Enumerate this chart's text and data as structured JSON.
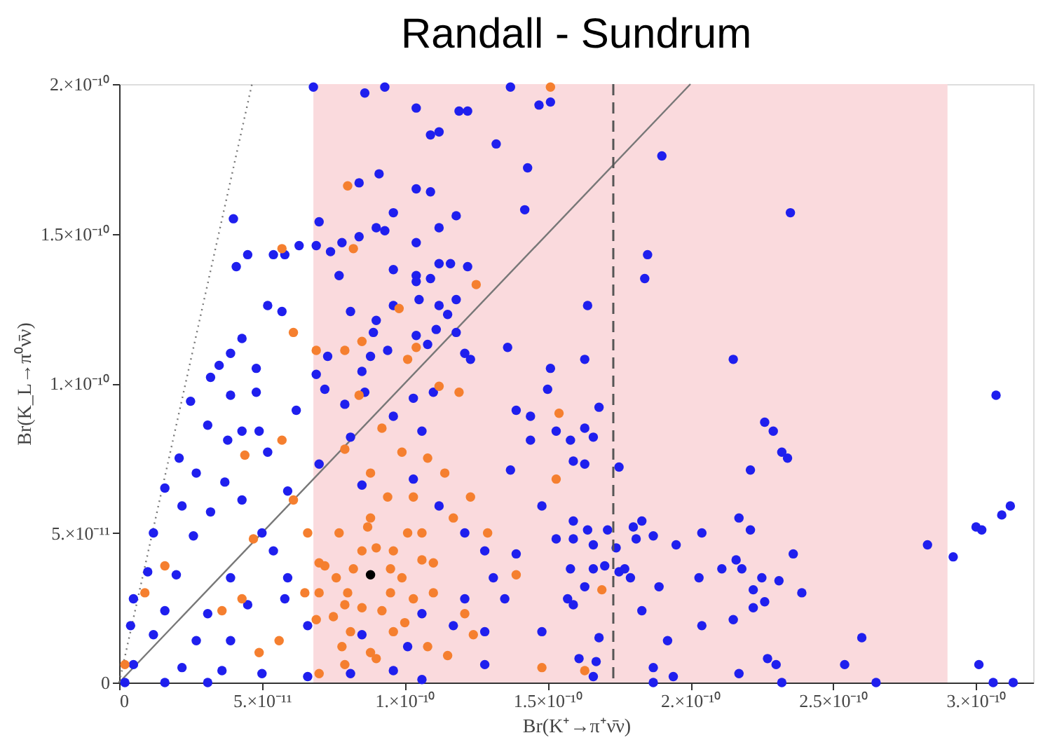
{
  "chart_data": {
    "type": "scatter",
    "title": "Randall - Sundrum",
    "xlabel": "Br(K⁺→π⁺ν̄ν)",
    "ylabel": "Br(K_L→π⁰ν̄ν)",
    "xlim": [
      0,
      3.2e-10
    ],
    "ylim": [
      0,
      2e-10
    ],
    "xticks": [
      0,
      {
        "value": 5e-11,
        "label": "5.×10⁻¹¹"
      },
      {
        "value": 1e-10,
        "label": "1.×10⁻¹⁰"
      },
      {
        "value": 1.5e-10,
        "label": "1.5×10⁻¹⁰"
      },
      {
        "value": 2e-10,
        "label": "2.×10⁻¹⁰"
      },
      {
        "value": 2.5e-10,
        "label": "2.5×10⁻¹⁰"
      },
      {
        "value": 3e-10,
        "label": "3.×10⁻¹⁰"
      }
    ],
    "yticks": [
      0,
      {
        "value": 5e-11,
        "label": "5.×10⁻¹¹"
      },
      {
        "value": 1e-10,
        "label": "1.×10⁻¹⁰"
      },
      {
        "value": 1.5e-10,
        "label": "1.5×10⁻¹⁰"
      },
      {
        "value": 2e-10,
        "label": "2.×10⁻¹⁰"
      }
    ],
    "grid": false,
    "bands": [
      {
        "axis": "x",
        "from": 6.8e-11,
        "to": 2.9e-10,
        "color": "#fadadd"
      }
    ],
    "ref_lines": [
      {
        "axis": "x",
        "value": 1.73e-10,
        "line_style": "dashed",
        "color": "#555555"
      }
    ],
    "series": [
      {
        "type": "line",
        "color": "#777777",
        "line_style": "solid",
        "marker": "none",
        "x": [
          0,
          2e-10
        ],
        "values": [
          0,
          2e-10
        ]
      },
      {
        "type": "line",
        "color": "#777777",
        "line_style": "dotted",
        "marker": "none",
        "x": [
          0,
          4.65e-11
        ],
        "values": [
          0,
          2e-10
        ]
      },
      {
        "color": "#1f1fee",
        "marker": "circle",
        "x": [
          6.8e-11,
          8.6e-11,
          9.3e-11,
          1.04e-10,
          1.19e-10,
          1.22e-10,
          1.09e-10,
          1.12e-10,
          1.37e-10,
          1.47e-10,
          1.51e-10,
          1.32e-10,
          1.43e-10,
          9.1e-11,
          8.4e-11,
          1.04e-10,
          1.09e-10,
          1.42e-10,
          4e-11,
          7e-11,
          9.6e-11,
          1.18e-10,
          9e-11,
          9.3e-11,
          1.12e-10,
          1.04e-10,
          8.4e-11,
          7.8e-11,
          6.3e-11,
          6.9e-11,
          7.4e-11,
          4.5e-11,
          5.4e-11,
          5.8e-11,
          4.1e-11,
          7.7e-11,
          9.6e-11,
          1.04e-10,
          1.04e-10,
          1.09e-10,
          1.12e-10,
          1.16e-10,
          1.22e-10,
          1.05e-10,
          9.6e-11,
          1.12e-10,
          1.18e-10,
          5.2e-11,
          5.7e-11,
          8.1e-11,
          9e-11,
          1.15e-10,
          8.9e-11,
          1.11e-10,
          1.18e-10,
          1.04e-10,
          4.3e-11,
          1.08e-10,
          1.36e-10,
          3.9e-11,
          3.5e-11,
          3.2e-11,
          4.8e-11,
          7.3e-11,
          8.8e-11,
          9.4e-11,
          1.21e-10,
          1.23e-10,
          1.51e-10,
          6.9e-11,
          8.5e-11,
          1.9e-10,
          2.35e-10,
          1.85e-10,
          1.84e-10,
          1.64e-10,
          1.63e-10,
          2.15e-10,
          1.68e-10,
          1.63e-10,
          1.66e-10,
          1.58e-10,
          1.59e-10,
          1.63e-10,
          1.75e-10,
          2.26e-10,
          2.29e-10,
          2.32e-10,
          2.34e-10,
          2.21e-10,
          1.59e-10,
          1.64e-10,
          1.71e-10,
          1.8e-10,
          1.83e-10,
          1.87e-10,
          1.81e-10,
          1.66e-10,
          1.74e-10,
          1.59e-10,
          1.95e-10,
          2.04e-10,
          2.17e-10,
          2.21e-10,
          2.36e-10,
          2.83e-10,
          2.92e-10,
          3e-10,
          3.02e-10,
          3.09e-10,
          3.12e-10,
          3.07e-10,
          1.58e-10,
          1.66e-10,
          1.7e-10,
          1.75e-10,
          1.77e-10,
          1.79e-10,
          1.63e-10,
          1.89e-10,
          2.03e-10,
          2.11e-10,
          2.16e-10,
          2.18e-10,
          2.25e-10,
          2.31e-10,
          2.22e-10,
          2.39e-10,
          1.59e-10,
          1.83e-10,
          2.22e-10,
          2.26e-10,
          2.15e-10,
          2.04e-10,
          1.68e-10,
          1.92e-10,
          2.6e-10,
          1.61e-10,
          1.67e-10,
          1.66e-10,
          1.87e-10,
          1.94e-10,
          2.17e-10,
          2.27e-10,
          2.3e-10,
          2.54e-10,
          1.87e-10,
          2.32e-10,
          2.65e-10,
          3.01e-10,
          3.06e-10,
          3.13e-10,
          4.8e-11,
          3.9e-11,
          2.5e-11,
          6.2e-11,
          3.1e-11,
          4.9e-11,
          3.8e-11,
          2.1e-11,
          2.7e-11,
          3.7e-11,
          1.6e-11,
          4.3e-11,
          2.2e-11,
          3.2e-11,
          1.2e-11,
          2.6e-11,
          5e-11,
          1e-11,
          2e-11,
          3.9e-11,
          5e-12,
          1.6e-11,
          3.1e-11,
          4.5e-11,
          5.8e-11,
          4e-12,
          1.2e-11,
          2.7e-11,
          3.9e-11,
          5e-12,
          2.2e-11,
          3.6e-11,
          5e-11,
          6.6e-11,
          8.1e-11,
          9.6e-11,
          1.06e-10,
          2e-12,
          1.6e-11,
          3.1e-11,
          7.2e-11,
          7.9e-11,
          8.6e-11,
          9.6e-11,
          1.03e-10,
          1.06e-10,
          8.1e-11,
          7e-11,
          8.5e-11,
          1.03e-10,
          1.12e-10,
          1.21e-10,
          1.28e-10,
          1.31e-10,
          1.21e-10,
          1.17e-10,
          1.28e-10,
          1.35e-10,
          1.39e-10,
          1.39e-10,
          1.44e-10,
          1.5e-10,
          1.37e-10,
          1.53e-10,
          1.48e-10,
          1.53e-10,
          1.57e-10,
          1.28e-10,
          1.48e-10,
          1.44e-10,
          1.06e-10,
          1.01e-10,
          1.1e-10,
          4.3e-11,
          5.2e-11,
          5.9e-11,
          5.4e-11,
          5.9e-11,
          6.6e-11,
          8.5e-11
        ],
        "values": [
          1.99e-10,
          1.97e-10,
          1.99e-10,
          1.92e-10,
          1.91e-10,
          1.91e-10,
          1.83e-10,
          1.84e-10,
          1.99e-10,
          1.93e-10,
          1.94e-10,
          1.8e-10,
          1.72e-10,
          1.7e-10,
          1.67e-10,
          1.65e-10,
          1.64e-10,
          1.58e-10,
          1.55e-10,
          1.54e-10,
          1.57e-10,
          1.56e-10,
          1.52e-10,
          1.51e-10,
          1.52e-10,
          1.47e-10,
          1.49e-10,
          1.47e-10,
          1.46e-10,
          1.46e-10,
          1.44e-10,
          1.43e-10,
          1.43e-10,
          1.43e-10,
          1.39e-10,
          1.36e-10,
          1.38e-10,
          1.36e-10,
          1.34e-10,
          1.35e-10,
          1.4e-10,
          1.4e-10,
          1.39e-10,
          1.28e-10,
          1.26e-10,
          1.26e-10,
          1.28e-10,
          1.26e-10,
          1.24e-10,
          1.24e-10,
          1.21e-10,
          1.23e-10,
          1.17e-10,
          1.18e-10,
          1.17e-10,
          1.16e-10,
          1.15e-10,
          1.13e-10,
          1.12e-10,
          1.1e-10,
          1.06e-10,
          1.02e-10,
          1.05e-10,
          1.09e-10,
          1.09e-10,
          1.11e-10,
          1.1e-10,
          1.08e-10,
          1.05e-10,
          1.03e-10,
          1.04e-10,
          1.76e-10,
          1.57e-10,
          1.43e-10,
          1.35e-10,
          1.26e-10,
          1.08e-10,
          1.08e-10,
          9.2e-11,
          8.5e-11,
          8.2e-11,
          8.1e-11,
          7.4e-11,
          7.3e-11,
          7.2e-11,
          8.7e-11,
          8.4e-11,
          7.7e-11,
          7.5e-11,
          7.1e-11,
          5.4e-11,
          5.1e-11,
          5.1e-11,
          5.2e-11,
          5.4e-11,
          4.9e-11,
          4.8e-11,
          4.6e-11,
          4.5e-11,
          4.8e-11,
          4.6e-11,
          5e-11,
          5.5e-11,
          5.1e-11,
          4.3e-11,
          4.6e-11,
          4.2e-11,
          5.2e-11,
          5.1e-11,
          5.6e-11,
          5.9e-11,
          9.6e-11,
          3.8e-11,
          3.8e-11,
          3.9e-11,
          3.7e-11,
          3.8e-11,
          3.5e-11,
          3.2e-11,
          3.2e-11,
          3.5e-11,
          3.8e-11,
          4.1e-11,
          3.8e-11,
          3.5e-11,
          3.4e-11,
          3.1e-11,
          3e-11,
          2.6e-11,
          2.4e-11,
          2.5e-11,
          2.7e-11,
          2.1e-11,
          1.9e-11,
          1.5e-11,
          1.4e-11,
          1.5e-11,
          8e-12,
          7e-12,
          2e-12,
          5e-12,
          2e-12,
          3e-12,
          8e-12,
          6e-12,
          6e-12,
          0,
          0,
          0,
          6e-12,
          0,
          0,
          9.7e-11,
          9.6e-11,
          9.4e-11,
          9.1e-11,
          8.6e-11,
          8.4e-11,
          8.1e-11,
          7.5e-11,
          7e-11,
          6.7e-11,
          6.5e-11,
          6.1e-11,
          5.9e-11,
          5.7e-11,
          5e-11,
          4.9e-11,
          5e-11,
          3.7e-11,
          3.6e-11,
          3.5e-11,
          2.8e-11,
          2.4e-11,
          2.3e-11,
          2.6e-11,
          2.8e-11,
          1.9e-11,
          1.6e-11,
          1.4e-11,
          1.4e-11,
          6e-12,
          5e-12,
          4e-12,
          3e-12,
          2e-12,
          3e-12,
          4e-12,
          1e-12,
          0,
          0,
          0,
          9.8e-11,
          9.3e-11,
          9.7e-11,
          8.9e-11,
          9.5e-11,
          8.4e-11,
          8.2e-11,
          7.3e-11,
          6.6e-11,
          6.8e-11,
          5.9e-11,
          5e-11,
          4.4e-11,
          3.5e-11,
          2.8e-11,
          1.9e-11,
          1.7e-11,
          2.8e-11,
          4.3e-11,
          9.1e-11,
          8.1e-11,
          9.8e-11,
          7.1e-11,
          8.4e-11,
          5.9e-11,
          4.8e-11,
          2.8e-11,
          6e-12,
          1.7e-11,
          8.9e-11,
          2.3e-11,
          1.2e-11,
          9.7e-11,
          8.4e-11,
          7.7e-11,
          6.4e-11,
          4.4e-11,
          3.5e-11,
          1.9e-11,
          1.6e-11
        ]
      },
      {
        "color": "#f57f2f",
        "marker": "circle",
        "x": [
          8e-11,
          5.7e-11,
          8.2e-11,
          1.25e-10,
          9.8e-11,
          6.1e-11,
          6.9e-11,
          7.9e-11,
          8.5e-11,
          1.04e-10,
          1.01e-10,
          1.51e-10,
          1.69e-10,
          1.63e-10,
          4.4e-11,
          5.7e-11,
          1.6e-11,
          9e-12,
          2e-12,
          4.7e-11,
          8.4e-11,
          9.2e-11,
          1.12e-10,
          1.19e-10,
          1.54e-10,
          1.53e-10,
          9.9e-11,
          7.9e-11,
          8.8e-11,
          1.08e-10,
          1.14e-10,
          1.03e-10,
          1.23e-10,
          1.17e-10,
          1.29e-10,
          1.39e-10,
          1.21e-10,
          1.24e-10,
          1.08e-10,
          1.15e-10,
          1.48e-10,
          6.1e-11,
          6.6e-11,
          6.5e-11,
          5.6e-11,
          4.9e-11,
          7e-11,
          7.9e-11,
          8.8e-11,
          9.6e-11,
          1.03e-10,
          1.06e-10,
          1.01e-10,
          8.8e-11,
          7.7e-11,
          7.2e-11,
          7.9e-11,
          9.2e-11,
          9.9e-11,
          8.5e-11,
          7.6e-11,
          9.6e-11,
          8.1e-11,
          6.9e-11,
          1.06e-10,
          9.4e-11,
          4.3e-11,
          3.6e-11,
          8e-11,
          9.5e-11,
          7e-11,
          1e-10,
          8.5e-11,
          7.5e-11,
          9e-11,
          8.2e-11,
          9.5e-11,
          7e-11,
          1.1e-10,
          8.7e-11,
          7.8e-11,
          9e-11,
          1.1e-10
        ],
        "values": [
          1.66e-10,
          1.45e-10,
          1.45e-10,
          1.33e-10,
          1.25e-10,
          1.17e-10,
          1.11e-10,
          1.11e-10,
          1.14e-10,
          1.12e-10,
          1.08e-10,
          1.99e-10,
          3.1e-11,
          4e-12,
          7.6e-11,
          8.1e-11,
          3.9e-11,
          3e-11,
          6e-12,
          4.8e-11,
          9.6e-11,
          8.5e-11,
          9.9e-11,
          9.7e-11,
          9e-11,
          6.8e-11,
          7.7e-11,
          7.8e-11,
          7e-11,
          7.5e-11,
          7e-11,
          6.2e-11,
          6.2e-11,
          5.5e-11,
          5e-11,
          3.6e-11,
          2.3e-11,
          1.6e-11,
          1.2e-11,
          9e-12,
          5e-12,
          6.1e-11,
          5e-11,
          3e-11,
          1.4e-11,
          1e-11,
          3e-12,
          6e-12,
          1e-11,
          1.7e-11,
          2.8e-11,
          4.1e-11,
          5e-11,
          5.5e-11,
          5e-11,
          3.9e-11,
          2.6e-11,
          2.4e-11,
          3.5e-11,
          4.4e-11,
          3.5e-11,
          4.4e-11,
          1.7e-11,
          2.1e-11,
          5e-11,
          6.2e-11,
          2.8e-11,
          2.4e-11,
          3e-11,
          3e-11,
          4e-11,
          2e-11,
          2.5e-11,
          2.2e-11,
          4.5e-11,
          3.8e-11,
          3.8e-11,
          3e-11,
          3e-11,
          5.2e-11,
          1.2e-11,
          8e-12,
          4e-11
        ]
      },
      {
        "color": "#000000",
        "marker": "circle",
        "x": [
          8.8e-11
        ],
        "values": [
          3.6e-11
        ]
      }
    ]
  }
}
